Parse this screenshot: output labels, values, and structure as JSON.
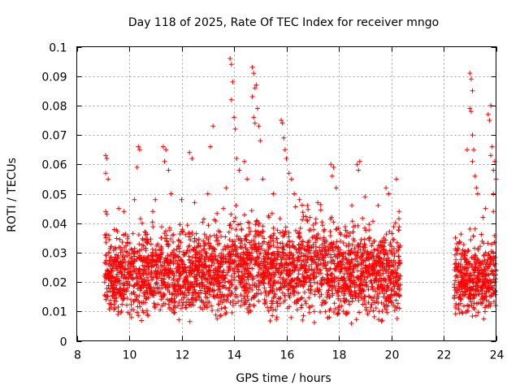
{
  "chart_data": {
    "type": "scatter",
    "title": "Day 118 of 2025, Rate Of TEC Index for receiver mngo",
    "xlabel": "GPS time / hours",
    "ylabel": "ROTI / TECUs",
    "xlim": [
      8,
      24
    ],
    "ylim": [
      0,
      0.1
    ],
    "x_ticks": [
      8,
      10,
      12,
      14,
      16,
      18,
      20,
      22,
      24
    ],
    "x_tick_labels": [
      "8",
      "10",
      "12",
      "14",
      "16",
      "18",
      "20",
      "22",
      "24"
    ],
    "y_ticks": [
      0,
      0.01,
      0.02,
      0.03,
      0.04,
      0.05,
      0.06,
      0.07,
      0.08,
      0.09,
      0.1
    ],
    "y_tick_labels": [
      "0",
      "0.01",
      "0.02",
      "0.03",
      "0.04",
      "0.05",
      "0.06",
      "0.07",
      "0.08",
      "0.09",
      "0.1"
    ],
    "grid": true,
    "marker": "plus",
    "marker_color": "#ff0000",
    "data_segments": [
      {
        "x_range": [
          9.05,
          20.35
        ],
        "y_range": [
          0.005,
          0.045
        ]
      },
      {
        "x_range": [
          22.4,
          24.0
        ],
        "y_range": [
          0.006,
          0.04
        ]
      }
    ],
    "points": [
      [
        9.1,
        0.063
      ],
      [
        9.15,
        0.062
      ],
      [
        9.1,
        0.057
      ],
      [
        9.2,
        0.055
      ],
      [
        9.1,
        0.044
      ],
      [
        9.15,
        0.043
      ],
      [
        9.6,
        0.045
      ],
      [
        9.8,
        0.044
      ],
      [
        10.2,
        0.048
      ],
      [
        10.3,
        0.059
      ],
      [
        10.35,
        0.066
      ],
      [
        10.4,
        0.065
      ],
      [
        10.5,
        0.04
      ],
      [
        10.9,
        0.044
      ],
      [
        11.0,
        0.048
      ],
      [
        11.3,
        0.066
      ],
      [
        11.4,
        0.065
      ],
      [
        11.35,
        0.061
      ],
      [
        11.5,
        0.058
      ],
      [
        11.6,
        0.05
      ],
      [
        12.0,
        0.048
      ],
      [
        12.3,
        0.064
      ],
      [
        12.4,
        0.062
      ],
      [
        12.5,
        0.047
      ],
      [
        13.0,
        0.05
      ],
      [
        13.1,
        0.066
      ],
      [
        13.2,
        0.073
      ],
      [
        13.6,
        0.045
      ],
      [
        13.7,
        0.052
      ],
      [
        13.85,
        0.096
      ],
      [
        13.9,
        0.094
      ],
      [
        13.95,
        0.088
      ],
      [
        13.9,
        0.082
      ],
      [
        14.0,
        0.076
      ],
      [
        14.05,
        0.072
      ],
      [
        14.1,
        0.062
      ],
      [
        14.2,
        0.058
      ],
      [
        14.4,
        0.061
      ],
      [
        14.5,
        0.055
      ],
      [
        14.7,
        0.093
      ],
      [
        14.75,
        0.091
      ],
      [
        14.8,
        0.086
      ],
      [
        14.7,
        0.083
      ],
      [
        14.85,
        0.087
      ],
      [
        14.9,
        0.079
      ],
      [
        14.75,
        0.076
      ],
      [
        14.8,
        0.074
      ],
      [
        14.95,
        0.073
      ],
      [
        15.0,
        0.068
      ],
      [
        15.1,
        0.055
      ],
      [
        15.5,
        0.05
      ],
      [
        15.8,
        0.075
      ],
      [
        15.85,
        0.074
      ],
      [
        15.9,
        0.069
      ],
      [
        15.95,
        0.065
      ],
      [
        16.0,
        0.062
      ],
      [
        16.1,
        0.057
      ],
      [
        16.2,
        0.055
      ],
      [
        16.3,
        0.05
      ],
      [
        16.5,
        0.048
      ],
      [
        16.8,
        0.046
      ],
      [
        17.2,
        0.047
      ],
      [
        17.7,
        0.06
      ],
      [
        17.8,
        0.059
      ],
      [
        17.75,
        0.056
      ],
      [
        17.9,
        0.052
      ],
      [
        18.5,
        0.046
      ],
      [
        18.7,
        0.06
      ],
      [
        18.8,
        0.061
      ],
      [
        18.75,
        0.058
      ],
      [
        19.0,
        0.049
      ],
      [
        19.5,
        0.046
      ],
      [
        19.8,
        0.052
      ],
      [
        19.9,
        0.05
      ],
      [
        20.2,
        0.055
      ],
      [
        20.3,
        0.044
      ],
      [
        22.45,
        0.035
      ],
      [
        22.5,
        0.033
      ],
      [
        22.9,
        0.065
      ],
      [
        23.0,
        0.091
      ],
      [
        23.05,
        0.089
      ],
      [
        23.1,
        0.085
      ],
      [
        23.0,
        0.079
      ],
      [
        23.05,
        0.078
      ],
      [
        23.1,
        0.07
      ],
      [
        23.15,
        0.065
      ],
      [
        23.1,
        0.061
      ],
      [
        23.2,
        0.056
      ],
      [
        23.25,
        0.052
      ],
      [
        23.3,
        0.05
      ],
      [
        23.6,
        0.045
      ],
      [
        23.7,
        0.077
      ],
      [
        23.8,
        0.08
      ],
      [
        23.75,
        0.075
      ],
      [
        23.85,
        0.066
      ],
      [
        23.8,
        0.063
      ],
      [
        23.9,
        0.058
      ],
      [
        23.95,
        0.061
      ],
      [
        24.0,
        0.055
      ],
      [
        23.9,
        0.05
      ],
      [
        23.6,
        0.03
      ],
      [
        23.4,
        0.025
      ],
      [
        22.8,
        0.028
      ],
      [
        23.0,
        0.038
      ],
      [
        23.5,
        0.042
      ],
      [
        23.9,
        0.044
      ]
    ]
  }
}
